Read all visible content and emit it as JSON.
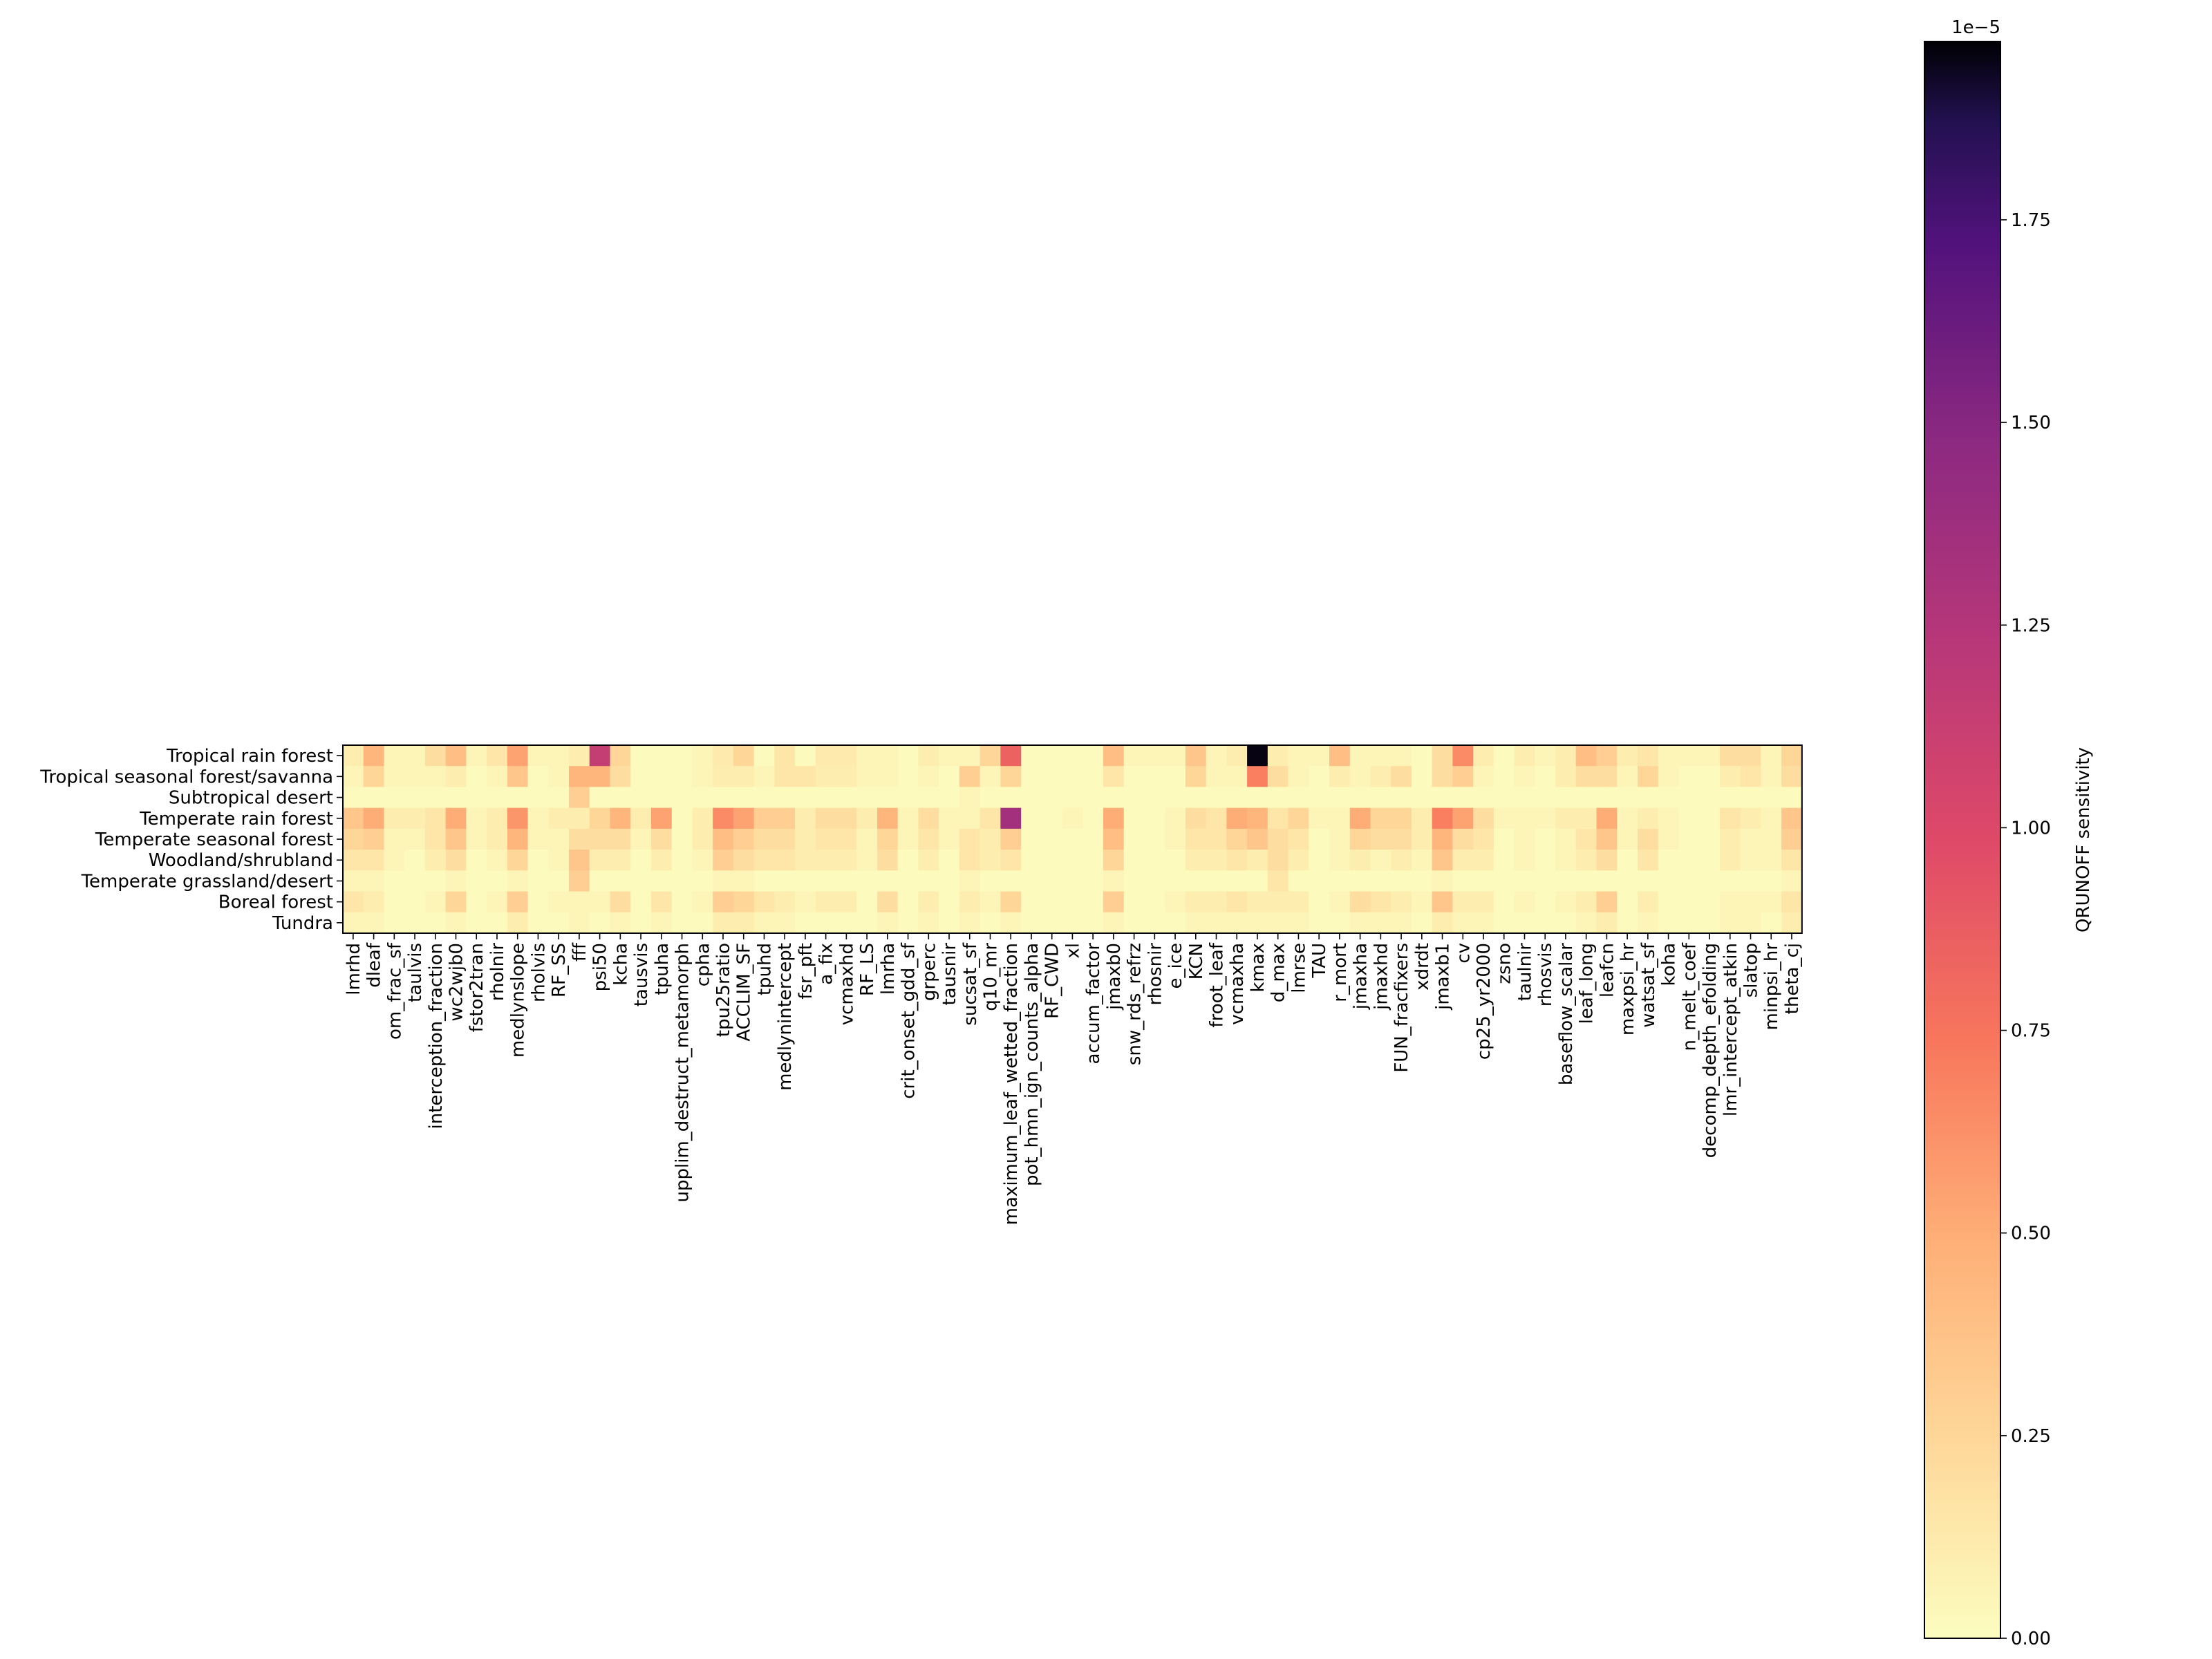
{
  "chart_data": {
    "type": "heatmap",
    "title": "",
    "xlabel": "",
    "ylabel": "",
    "rows": [
      "Tropical rain forest",
      "Tropical seasonal forest/savanna",
      "Subtropical desert",
      "Temperate rain forest",
      "Temperate seasonal forest",
      "Woodland/shrubland",
      "Temperate grassland/desert",
      "Boreal forest",
      "Tundra"
    ],
    "columns": [
      "lmrhd",
      "dleaf",
      "om_frac_sf",
      "taulvis",
      "interception_fraction",
      "wc2wjb0",
      "fstor2tran",
      "rholnir",
      "medlynslope",
      "rholvis",
      "RF_SS",
      "fff",
      "psi50",
      "kcha",
      "tausvis",
      "tpuha",
      "upplim_destruct_metamorph",
      "cpha",
      "tpu25ratio",
      "ACCLIM_SF",
      "tpuhd",
      "medlynintercept",
      "fsr_pft",
      "a_fix",
      "vcmaxhd",
      "RF_LS",
      "lmrha",
      "crit_onset_gdd_sf",
      "grperc",
      "tausnir",
      "sucsat_sf",
      "q10_mr",
      "maximum_leaf_wetted_fraction",
      "pot_hmn_ign_counts_alpha",
      "RF_CWD",
      "xl",
      "accum_factor",
      "jmaxb0",
      "snw_rds_refrz",
      "rhosnir",
      "e_ice",
      "KCN",
      "froot_leaf",
      "vcmaxha",
      "kmax",
      "d_max",
      "lmrse",
      "TAU",
      "r_mort",
      "jmaxha",
      "jmaxhd",
      "FUN_fracfixers",
      "xdrdt",
      "jmaxb1",
      "cv",
      "cp25_yr2000",
      "zsno",
      "taulnir",
      "rhosvis",
      "baseflow_scalar",
      "leaf_long",
      "leafcn",
      "maxpsi_hr",
      "watsat_sf",
      "koha",
      "n_melt_coef",
      "decomp_depth_efolding",
      "lmr_intercept_atkin",
      "slatop",
      "minpsi_hr",
      "theta_cj"
    ],
    "x_tick_labels_shown": [
      "lmrhd",
      "dleaf",
      "om_frac_sf",
      "taulvis",
      "interception_fraction",
      "wc2wjb0",
      "fstor2tran",
      "rholnir",
      "medlynslope",
      "rholvis",
      "RF_SS",
      "fff",
      "psi50",
      "kcha",
      "tausvis",
      "tpuha",
      "upplim_destruct_metamorph",
      "cpha",
      "tpu25ratio",
      "ACCLIM_SF",
      "tpuhd",
      "medlynintercept",
      "fsr_pft",
      "a_fix",
      "vcmaxhd",
      "RF_LS",
      "lmrha",
      "crit_onset_gdd_sf",
      "grperc",
      "tausnir",
      "sucsat_sf",
      "q10_mr",
      "maximum_leaf_wetted_fraction",
      "pot_hmn_ign_counts_alpha",
      "RF_CWD",
      "xl",
      "accum_factor",
      "jmaxb0",
      "snw_rds_refrz",
      "rhosnir",
      "e_ice",
      "KCN",
      "froot_leaf",
      "vcmaxha",
      "kmax",
      "d_max",
      "lmrse",
      "TAU",
      "r_mort",
      "jmaxha",
      "jmaxhd",
      "FUN_fracfixers",
      "xdrdt",
      "jmaxb1",
      "cv",
      "cp25_yr2000",
      "zsno",
      "taulnir",
      "rhosvis",
      "baseflow_scalar",
      "leaf_long",
      "leafcn",
      "maxpsi_hr",
      "watsat_sf",
      "koha",
      "n_melt_coef",
      "decomp_depth_efolding",
      "lmr_intercept_atkin",
      "slatop",
      "minpsi_hr",
      "theta_cj"
    ],
    "values": [
      [
        0.1,
        0.45,
        0.05,
        0.05,
        0.2,
        0.4,
        0.05,
        0.15,
        0.55,
        0.05,
        0.05,
        0.1,
        1.15,
        0.25,
        0.02,
        0.02,
        0.02,
        0.05,
        0.12,
        0.25,
        0.02,
        0.15,
        0.02,
        0.12,
        0.12,
        0.05,
        0.05,
        0.02,
        0.1,
        0.05,
        0.05,
        0.25,
        0.85,
        0.02,
        0.02,
        0.02,
        0.02,
        0.4,
        0.05,
        0.05,
        0.05,
        0.35,
        0.05,
        0.1,
        1.95,
        0.1,
        0.05,
        0.05,
        0.4,
        0.05,
        0.05,
        0.05,
        0.02,
        0.2,
        0.65,
        0.1,
        0.02,
        0.1,
        0.05,
        0.1,
        0.4,
        0.3,
        0.1,
        0.15,
        0.05,
        0.05,
        0.05,
        0.2,
        0.2,
        0.05,
        0.25
      ],
      [
        0.05,
        0.25,
        0.05,
        0.05,
        0.05,
        0.1,
        0.02,
        0.05,
        0.35,
        0.02,
        0.05,
        0.45,
        0.45,
        0.2,
        0.02,
        0.02,
        0.02,
        0.05,
        0.1,
        0.1,
        0.05,
        0.15,
        0.15,
        0.1,
        0.1,
        0.05,
        0.05,
        0.02,
        0.05,
        0.02,
        0.3,
        0.05,
        0.25,
        0.02,
        0.02,
        0.02,
        0.02,
        0.15,
        0.02,
        0.02,
        0.02,
        0.25,
        0.05,
        0.05,
        0.7,
        0.2,
        0.05,
        0.02,
        0.1,
        0.05,
        0.1,
        0.2,
        0.02,
        0.2,
        0.3,
        0.05,
        0.02,
        0.05,
        0.02,
        0.1,
        0.2,
        0.2,
        0.05,
        0.25,
        0.05,
        0.02,
        0.02,
        0.1,
        0.15,
        0.05,
        0.2
      ],
      [
        0.02,
        0.02,
        0.02,
        0.02,
        0.02,
        0.02,
        0.02,
        0.02,
        0.02,
        0.02,
        0.02,
        0.3,
        0.02,
        0.02,
        0.02,
        0.02,
        0.02,
        0.02,
        0.02,
        0.02,
        0.02,
        0.02,
        0.02,
        0.02,
        0.02,
        0.02,
        0.02,
        0.02,
        0.02,
        0.02,
        0.05,
        0.02,
        0.02,
        0.02,
        0.02,
        0.02,
        0.02,
        0.02,
        0.02,
        0.02,
        0.02,
        0.02,
        0.02,
        0.02,
        0.02,
        0.02,
        0.02,
        0.02,
        0.02,
        0.02,
        0.02,
        0.02,
        0.02,
        0.02,
        0.02,
        0.02,
        0.02,
        0.02,
        0.02,
        0.02,
        0.02,
        0.02,
        0.02,
        0.02,
        0.02,
        0.02,
        0.02,
        0.02,
        0.02,
        0.02,
        0.02
      ],
      [
        0.35,
        0.5,
        0.1,
        0.1,
        0.15,
        0.5,
        0.05,
        0.1,
        0.6,
        0.05,
        0.1,
        0.1,
        0.25,
        0.45,
        0.1,
        0.55,
        0.02,
        0.1,
        0.65,
        0.55,
        0.3,
        0.3,
        0.1,
        0.2,
        0.2,
        0.1,
        0.45,
        0.05,
        0.2,
        0.05,
        0.05,
        0.15,
        1.35,
        0.02,
        0.02,
        0.05,
        0.02,
        0.5,
        0.02,
        0.02,
        0.05,
        0.2,
        0.15,
        0.5,
        0.45,
        0.15,
        0.25,
        0.05,
        0.05,
        0.5,
        0.25,
        0.25,
        0.1,
        0.7,
        0.55,
        0.2,
        0.05,
        0.05,
        0.05,
        0.1,
        0.1,
        0.5,
        0.05,
        0.1,
        0.05,
        0.02,
        0.02,
        0.15,
        0.1,
        0.05,
        0.35
      ],
      [
        0.25,
        0.3,
        0.05,
        0.05,
        0.15,
        0.35,
        0.05,
        0.1,
        0.45,
        0.05,
        0.05,
        0.2,
        0.2,
        0.2,
        0.05,
        0.2,
        0.02,
        0.1,
        0.4,
        0.3,
        0.2,
        0.2,
        0.1,
        0.15,
        0.15,
        0.05,
        0.25,
        0.05,
        0.15,
        0.05,
        0.15,
        0.1,
        0.3,
        0.02,
        0.02,
        0.02,
        0.02,
        0.4,
        0.02,
        0.02,
        0.05,
        0.15,
        0.15,
        0.25,
        0.35,
        0.2,
        0.15,
        0.02,
        0.05,
        0.25,
        0.2,
        0.2,
        0.1,
        0.45,
        0.2,
        0.15,
        0.02,
        0.05,
        0.02,
        0.05,
        0.15,
        0.35,
        0.05,
        0.2,
        0.05,
        0.02,
        0.02,
        0.1,
        0.05,
        0.05,
        0.3
      ],
      [
        0.15,
        0.15,
        0.05,
        0.02,
        0.1,
        0.2,
        0.02,
        0.05,
        0.25,
        0.02,
        0.05,
        0.35,
        0.1,
        0.1,
        0.02,
        0.1,
        0.02,
        0.05,
        0.3,
        0.2,
        0.15,
        0.15,
        0.1,
        0.1,
        0.1,
        0.05,
        0.2,
        0.02,
        0.1,
        0.02,
        0.15,
        0.1,
        0.15,
        0.02,
        0.02,
        0.02,
        0.02,
        0.25,
        0.02,
        0.02,
        0.02,
        0.1,
        0.1,
        0.15,
        0.1,
        0.2,
        0.1,
        0.02,
        0.05,
        0.1,
        0.05,
        0.1,
        0.05,
        0.35,
        0.1,
        0.1,
        0.02,
        0.05,
        0.02,
        0.05,
        0.1,
        0.2,
        0.02,
        0.15,
        0.02,
        0.02,
        0.02,
        0.1,
        0.05,
        0.05,
        0.15
      ],
      [
        0.05,
        0.05,
        0.02,
        0.02,
        0.02,
        0.05,
        0.02,
        0.02,
        0.05,
        0.02,
        0.02,
        0.3,
        0.02,
        0.02,
        0.02,
        0.02,
        0.02,
        0.02,
        0.05,
        0.05,
        0.02,
        0.02,
        0.02,
        0.02,
        0.02,
        0.02,
        0.02,
        0.02,
        0.02,
        0.02,
        0.05,
        0.02,
        0.02,
        0.02,
        0.02,
        0.02,
        0.02,
        0.05,
        0.02,
        0.02,
        0.02,
        0.02,
        0.02,
        0.02,
        0.02,
        0.15,
        0.02,
        0.02,
        0.02,
        0.02,
        0.02,
        0.02,
        0.02,
        0.05,
        0.02,
        0.02,
        0.02,
        0.02,
        0.02,
        0.02,
        0.02,
        0.02,
        0.02,
        0.02,
        0.02,
        0.02,
        0.02,
        0.02,
        0.02,
        0.02,
        0.05
      ],
      [
        0.15,
        0.1,
        0.02,
        0.02,
        0.05,
        0.25,
        0.02,
        0.05,
        0.3,
        0.02,
        0.05,
        0.05,
        0.05,
        0.2,
        0.02,
        0.15,
        0.02,
        0.05,
        0.3,
        0.25,
        0.15,
        0.1,
        0.05,
        0.1,
        0.1,
        0.02,
        0.2,
        0.02,
        0.1,
        0.02,
        0.1,
        0.05,
        0.25,
        0.02,
        0.02,
        0.02,
        0.02,
        0.3,
        0.02,
        0.02,
        0.05,
        0.1,
        0.1,
        0.15,
        0.1,
        0.1,
        0.1,
        0.02,
        0.05,
        0.2,
        0.15,
        0.1,
        0.05,
        0.35,
        0.1,
        0.1,
        0.02,
        0.05,
        0.02,
        0.05,
        0.1,
        0.3,
        0.02,
        0.1,
        0.02,
        0.02,
        0.02,
        0.05,
        0.05,
        0.05,
        0.15
      ],
      [
        0.05,
        0.05,
        0.02,
        0.02,
        0.02,
        0.05,
        0.02,
        0.02,
        0.1,
        0.02,
        0.02,
        0.05,
        0.02,
        0.05,
        0.02,
        0.05,
        0.02,
        0.02,
        0.1,
        0.1,
        0.05,
        0.05,
        0.02,
        0.02,
        0.02,
        0.02,
        0.05,
        0.02,
        0.05,
        0.02,
        0.05,
        0.02,
        0.05,
        0.02,
        0.02,
        0.02,
        0.02,
        0.05,
        0.02,
        0.02,
        0.02,
        0.05,
        0.05,
        0.05,
        0.05,
        0.05,
        0.05,
        0.02,
        0.02,
        0.05,
        0.05,
        0.05,
        0.02,
        0.1,
        0.05,
        0.05,
        0.02,
        0.02,
        0.02,
        0.02,
        0.05,
        0.1,
        0.02,
        0.05,
        0.02,
        0.02,
        0.02,
        0.05,
        0.05,
        0.02,
        0.1
      ]
    ],
    "value_scale": 1e-05,
    "vmin": 0,
    "vmax": 1.97,
    "colormap": "magma_r",
    "colorbar": {
      "label": "QRUNOFF sensitivity",
      "offset_text": "1e−5",
      "ticks": [
        0.0,
        0.25,
        0.5,
        0.75,
        1.0,
        1.25,
        1.5,
        1.75
      ],
      "tick_labels": [
        "0.00",
        "0.25",
        "0.50",
        "0.75",
        "1.00",
        "1.25",
        "1.50",
        "1.75"
      ]
    }
  }
}
